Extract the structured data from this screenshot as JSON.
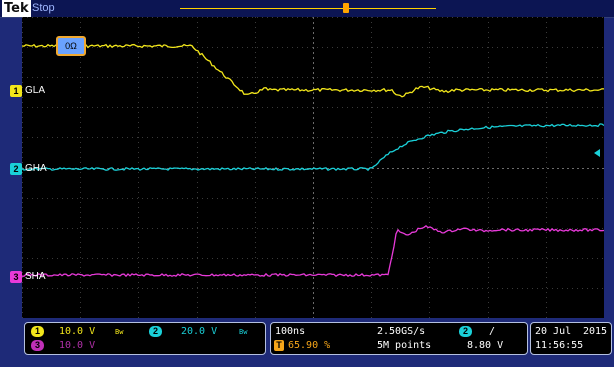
{
  "header": {
    "brand": "Tek",
    "acquisition_state": "Stop"
  },
  "channels": [
    {
      "id": "1",
      "name": "GLA",
      "color": "#f2e61b"
    },
    {
      "id": "2",
      "name": "GHA",
      "color": "#1ad0d8"
    },
    {
      "id": "3",
      "name": "SHA",
      "color": "#e83ad9"
    }
  ],
  "termination_badge": "0Ω",
  "trigger_badge": "T",
  "status": {
    "ch1_badge": "1",
    "ch1_scale": "10.0 V",
    "ch1_bw": "Bw",
    "ch2_badge": "2",
    "ch2_scale": "20.0 V",
    "ch2_bw": "Bw",
    "ch3_badge": "3",
    "ch3_scale": "10.0 V",
    "timebase": "100ns",
    "trigger_pos_badge": "T",
    "trigger_position": "65.90 %",
    "sample_rate": "2.50GS/s",
    "record_length": "5M points",
    "trigger_source_badge": "2",
    "trigger_slope": "/",
    "trigger_level": "8.80 V",
    "date": "20 Jul",
    "year": "2015",
    "time": "11:56:55"
  }
}
